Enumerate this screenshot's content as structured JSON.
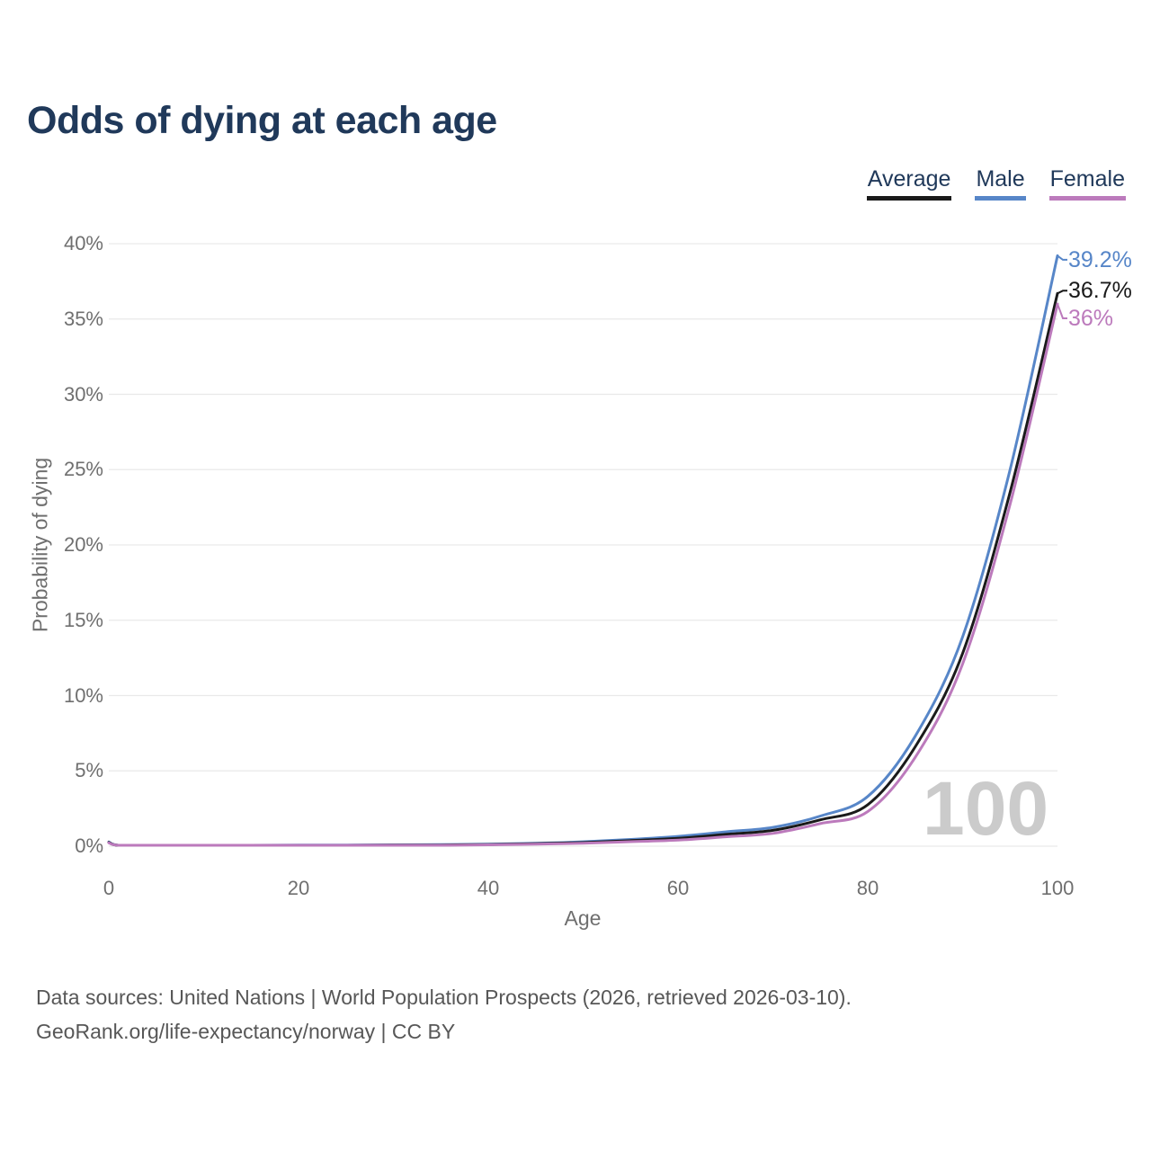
{
  "title": "Odds of dying at each age",
  "legend": [
    {
      "id": "average",
      "label": "Average",
      "color": "#1a1a1a"
    },
    {
      "id": "male",
      "label": "Male",
      "color": "#5786c8"
    },
    {
      "id": "female",
      "label": "Female",
      "color": "#bc7abc"
    }
  ],
  "watermark": "100",
  "footer": {
    "line1": "Data sources: United Nations | World Population Prospects (2026, retrieved 2026-03-10).",
    "line2": "GeoRank.org/life-expectancy/norway | CC BY"
  },
  "colors": {
    "title": "#20395a",
    "axis_text": "#6f6f6f",
    "gridline": "#e9e9e9",
    "watermark": "#cbcbcb"
  },
  "chart_data": {
    "type": "line",
    "title": "Odds of dying at each age",
    "xlabel": "Age",
    "ylabel": "Probability of dying",
    "xlim": [
      0,
      100
    ],
    "ylim": [
      0,
      40
    ],
    "x_ticks": [
      0,
      20,
      40,
      60,
      80,
      100
    ],
    "y_ticks": [
      "0%",
      "5%",
      "10%",
      "15%",
      "20%",
      "25%",
      "30%",
      "35%",
      "40%"
    ],
    "grid": true,
    "legend_position": "top-right",
    "x": [
      0,
      1,
      5,
      10,
      15,
      20,
      25,
      30,
      35,
      40,
      45,
      50,
      55,
      60,
      65,
      70,
      75,
      80,
      85,
      90,
      95,
      100
    ],
    "series": [
      {
        "name": "Male",
        "color": "#5786c8",
        "end_label": "39.2%",
        "values": [
          0.28,
          0.04,
          0.01,
          0.01,
          0.03,
          0.07,
          0.08,
          0.09,
          0.1,
          0.13,
          0.19,
          0.29,
          0.45,
          0.65,
          0.95,
          1.25,
          2.0,
          3.3,
          7.3,
          13.9,
          25.0,
          39.2
        ]
      },
      {
        "name": "Average",
        "color": "#1a1a1a",
        "end_label": "36.7%",
        "values": [
          0.25,
          0.03,
          0.01,
          0.01,
          0.02,
          0.05,
          0.06,
          0.07,
          0.08,
          0.11,
          0.16,
          0.24,
          0.37,
          0.52,
          0.78,
          1.05,
          1.75,
          2.75,
          6.6,
          12.8,
          23.5,
          36.7
        ]
      },
      {
        "name": "Female",
        "color": "#bc7abc",
        "end_label": "36%",
        "values": [
          0.22,
          0.03,
          0.01,
          0.01,
          0.02,
          0.03,
          0.04,
          0.05,
          0.06,
          0.09,
          0.13,
          0.19,
          0.3,
          0.4,
          0.62,
          0.85,
          1.5,
          2.3,
          5.9,
          12.1,
          22.7,
          36.0
        ]
      }
    ]
  }
}
